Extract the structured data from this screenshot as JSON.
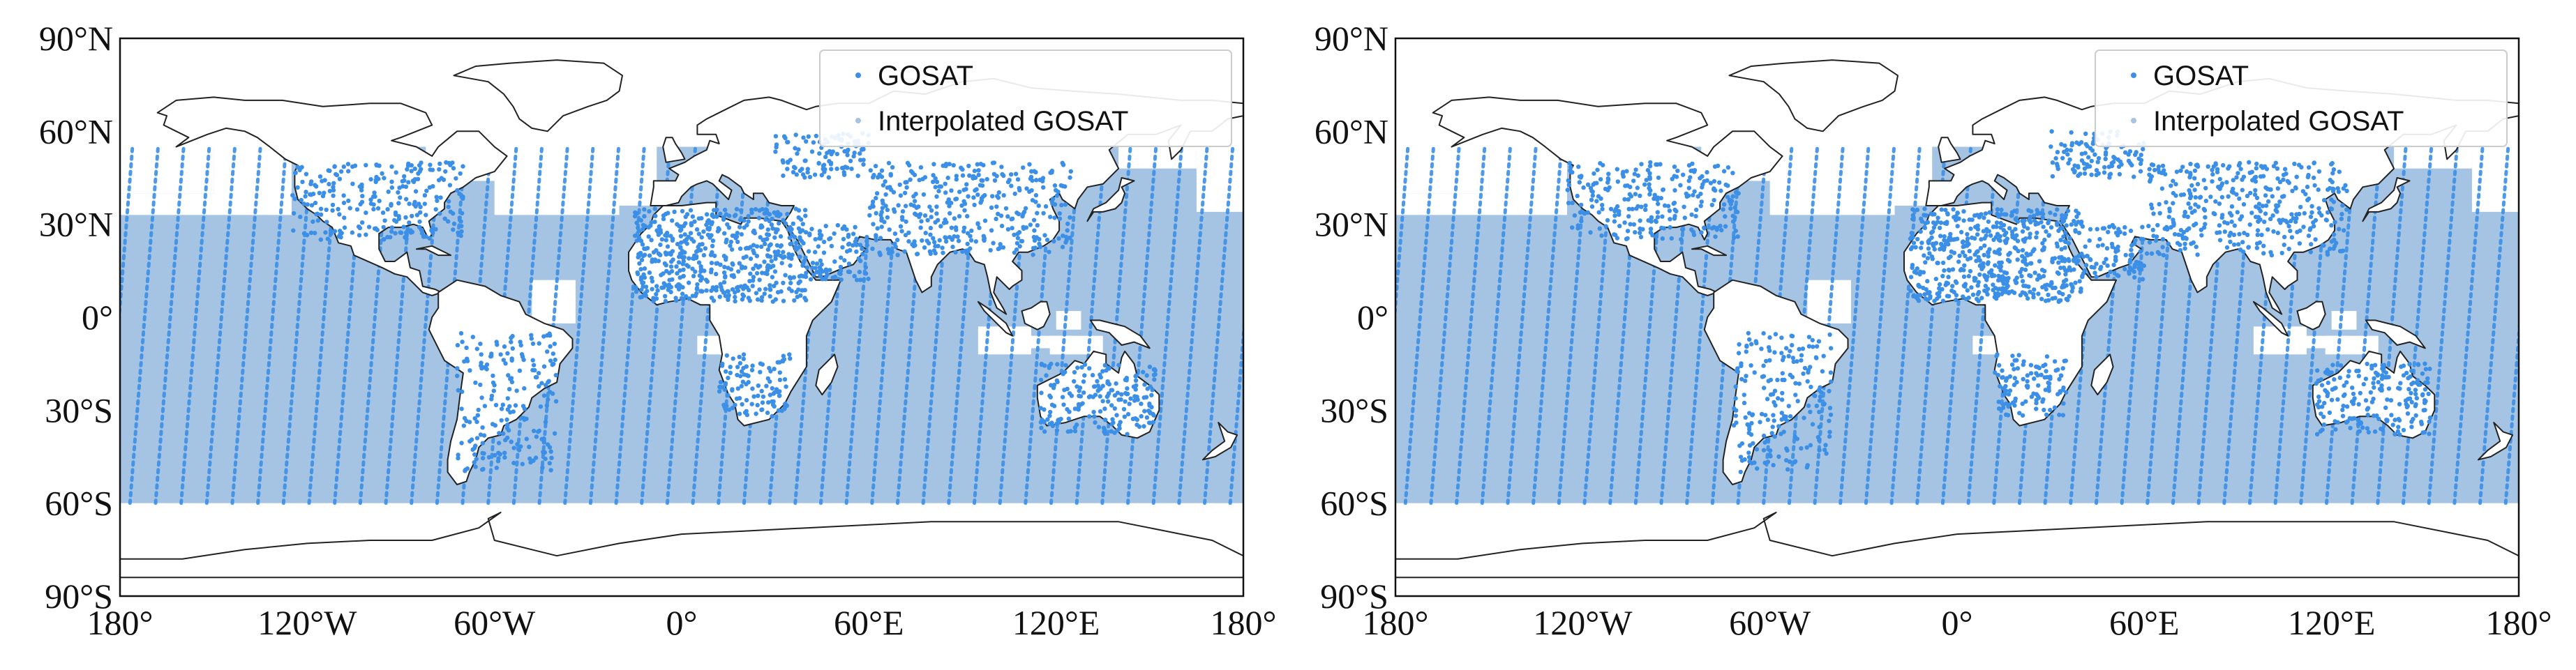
{
  "colors": {
    "gosat": "#3b8fe6",
    "interpolated": "#a5c3e3",
    "coast": "#222222",
    "land": "#ffffff"
  },
  "map_data": [
    {
      "legend": {
        "gosat": "GOSAT",
        "interpolated": "Interpolated GOSAT",
        "placement": "top-right"
      },
      "y_ticks": [
        "90°N",
        "60°N",
        "30°N",
        "0°",
        "30°S",
        "60°S",
        "90°S"
      ],
      "x_ticks": [
        "180°",
        "120°W",
        "60°W",
        "0°",
        "60°E",
        "120°E",
        "180°"
      ],
      "extent": {
        "lon": [
          -180,
          180
        ],
        "lat": [
          -90,
          90
        ]
      },
      "coverage_lat": [
        -60,
        55
      ]
    },
    {
      "legend": {
        "gosat": "GOSAT",
        "interpolated": "Interpolated GOSAT",
        "placement": "top-right"
      },
      "y_ticks": [
        "90°N",
        "60°N",
        "30°N",
        "0°",
        "30°S",
        "60°S",
        "90°S"
      ],
      "x_ticks": [
        "180°",
        "120°W",
        "60°W",
        "0°",
        "60°E",
        "120°E",
        "180°"
      ],
      "extent": {
        "lon": [
          -180,
          180
        ],
        "lat": [
          -90,
          90
        ]
      },
      "coverage_lat": [
        -60,
        55
      ]
    }
  ]
}
